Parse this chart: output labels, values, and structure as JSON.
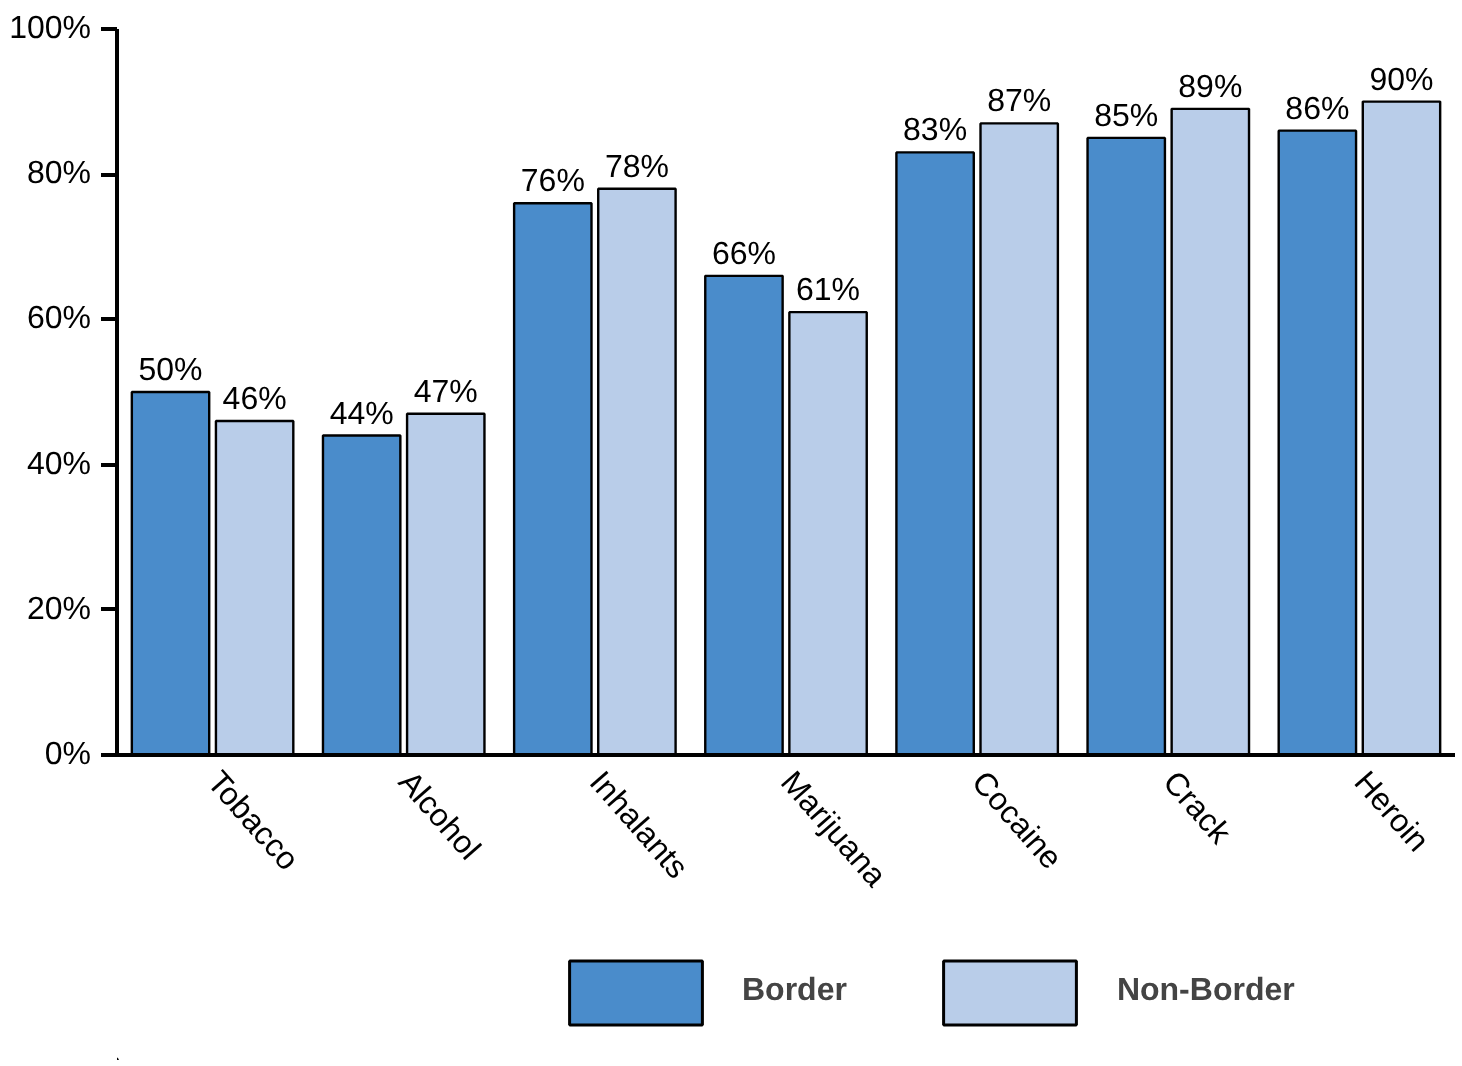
{
  "chart_data": {
    "type": "bar",
    "categories": [
      "Tobacco",
      "Alcohol",
      "Inhalants",
      "Marijuana",
      "Cocaine",
      "Crack",
      "Heroin"
    ],
    "series": [
      {
        "name": "Border",
        "color": "#4a8ccb",
        "values": [
          50,
          44,
          76,
          66,
          83,
          85,
          86
        ],
        "value_labels": [
          "50%",
          "44%",
          "76%",
          "66%",
          "83%",
          "85%",
          "86%"
        ]
      },
      {
        "name": "Non-Border",
        "color": "#b9cde9",
        "values": [
          46,
          47,
          78,
          61,
          87,
          89,
          90
        ],
        "value_labels": [
          "46%",
          "47%",
          "78%",
          "61%",
          "87%",
          "89%",
          "90%"
        ]
      }
    ],
    "ylim": [
      0,
      100
    ],
    "yticks": [
      {
        "value": 0,
        "label": "0%"
      },
      {
        "value": 20,
        "label": "20%"
      },
      {
        "value": 40,
        "label": "40%"
      },
      {
        "value": 60,
        "label": "60%"
      },
      {
        "value": 80,
        "label": "80%"
      },
      {
        "value": 100,
        "label": "100%"
      }
    ],
    "grid": false,
    "legend": "bottom"
  }
}
